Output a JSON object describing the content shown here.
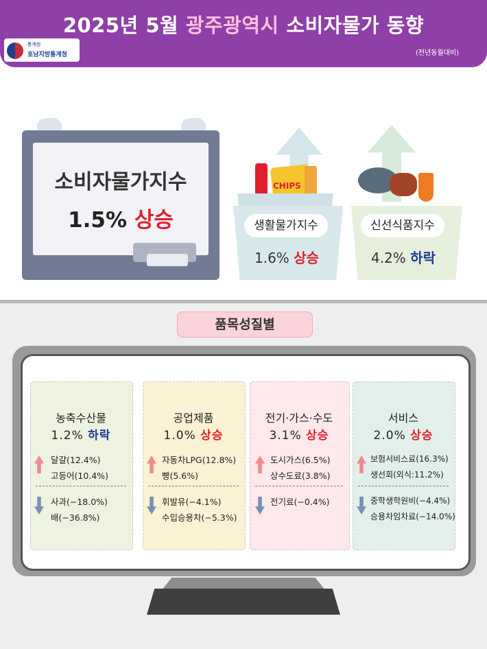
{
  "header": {
    "title_prefix": "2025년 5월",
    "title_region": "광주광역시",
    "title_suffix": "소비자물가 동향",
    "basis": "(전년동월대비)",
    "agency_small": "통계청",
    "agency": "호남지방통계청"
  },
  "headline": {
    "cpi_label": "소비자물가지수",
    "cpi_rate": "1.5%",
    "cpi_dir": "상승",
    "chips_text": "CHIPS",
    "living_label": "생활물가지수",
    "living_rate": "1.6%",
    "living_dir": "상승",
    "fresh_label": "신선식품지수",
    "fresh_rate": "4.2%",
    "fresh_dir": "하락"
  },
  "section_title": "품목성질별",
  "categories": [
    {
      "name": "농축수산물",
      "rate": "1.2%",
      "dir": "하락",
      "up_items": [
        "달걀(12.4%)",
        "고등어(10.4%)"
      ],
      "down_items": [
        "사과(−18.0%)",
        "배(−36.8%)"
      ]
    },
    {
      "name": "공업제품",
      "rate": "1.0%",
      "dir": "상승",
      "up_items": [
        "자동차LPG(12.8%)",
        "빵(5.6%)"
      ],
      "down_items": [
        "휘발유(−4.1%)",
        "수입승용차(−5.3%)"
      ]
    },
    {
      "name": "전기·가스·수도",
      "rate": "3.1%",
      "dir": "상승",
      "up_items": [
        "도시가스(6.5%)",
        "상수도료(3.8%)"
      ],
      "down_items": [
        "전기료(−0.4%)"
      ]
    },
    {
      "name": "서비스",
      "rate": "2.0%",
      "dir": "상승",
      "up_items": [
        "보험서비스료(16.3%)",
        "생선회(외식:11.2%)"
      ],
      "down_items": [
        "중학생학원비(−4.4%)",
        "승용차임차료(−14.0%)"
      ]
    }
  ],
  "colors": {
    "header": "#8f3fa8",
    "rise": "#e0202e",
    "fall": "#1f3a93"
  }
}
